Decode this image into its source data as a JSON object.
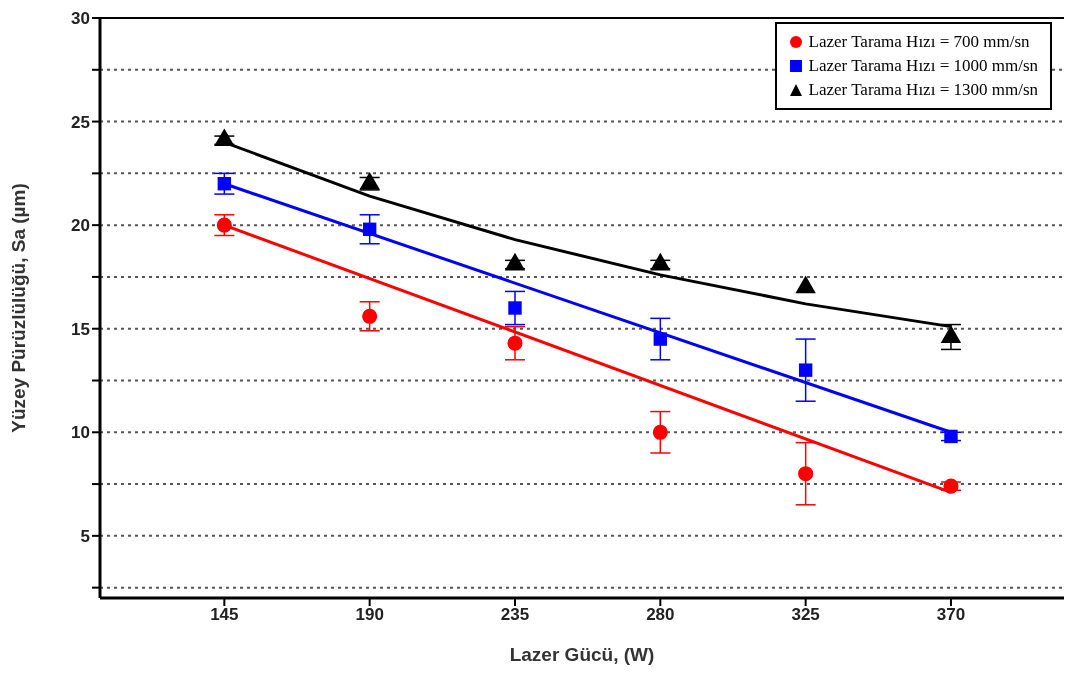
{
  "chart_data": {
    "type": "scatter",
    "xlabel": "Lazer Gücü, (W)",
    "ylabel": "Yüzey Pürüzlülüğü, Sa (µm)",
    "xlim": [
      106.5,
      405
    ],
    "xticks": [
      145,
      190,
      235,
      280,
      325,
      370
    ],
    "ylim": [
      2,
      30
    ],
    "yticks": [
      {
        "value": 2.5,
        "label": null
      },
      5,
      {
        "value": 7.5,
        "label": null
      },
      10,
      {
        "value": 12.5,
        "label": null
      },
      15,
      {
        "value": 17.5,
        "label": null
      },
      20,
      {
        "value": 22.5,
        "label": null
      },
      25,
      {
        "value": 27.5,
        "label": null
      },
      30
    ],
    "grid": "y",
    "legend": "top right",
    "series": [
      {
        "name": "Lazer Tarama Hızı = 700 mm/sn",
        "marker": "circle",
        "color": "#ff0000",
        "x": [
          145,
          190,
          235,
          280,
          325,
          370
        ],
        "values": [
          20,
          15.6,
          14.3,
          10,
          8,
          7.4
        ],
        "errors": [
          0.5,
          0.7,
          0.8,
          1,
          1.5,
          0.2
        ]
      },
      {
        "name": "Lazer Tarama Hızı = 1000 mm/sn",
        "marker": "square",
        "color": "#0000ff",
        "x": [
          145,
          190,
          235,
          280,
          325,
          370
        ],
        "values": [
          22,
          19.8,
          16,
          14.5,
          13,
          9.8
        ],
        "errors": [
          0.5,
          0.7,
          0.8,
          1,
          1.5,
          0.2
        ]
      },
      {
        "name": "Lazer Tarama Hızı = 1300 mm/sn",
        "marker": "triangle",
        "color": "#000000",
        "x": [
          145,
          190,
          235,
          280,
          325,
          370
        ],
        "values": [
          24.1,
          22,
          18.1,
          18.1,
          17,
          14.6
        ],
        "errors": [
          0.2,
          0.3,
          0.2,
          0.2,
          null,
          0.6
        ]
      },
      {
        "type": "line",
        "marker": "none",
        "color": "#ff0000",
        "x": [
          145,
          370
        ],
        "values": [
          20,
          7.1
        ]
      },
      {
        "type": "line",
        "marker": "none",
        "color": "#0000ff",
        "x": [
          145,
          370
        ],
        "values": [
          22,
          10
        ]
      },
      {
        "type": "line",
        "marker": "none",
        "color": "#000000",
        "x": [
          145,
          190,
          235,
          280,
          325,
          370
        ],
        "values": [
          24,
          21.4,
          19.3,
          17.6,
          16.2,
          15.1
        ]
      }
    ]
  }
}
